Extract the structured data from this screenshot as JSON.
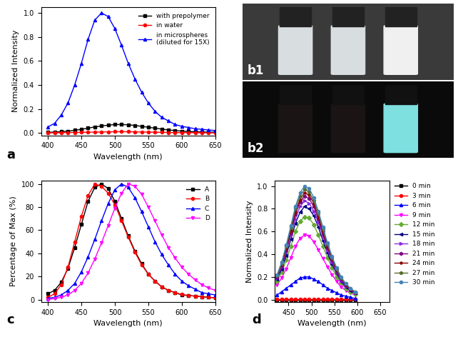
{
  "chart_data": [
    {
      "type": "line",
      "annotation": "a",
      "x_label": "Wavelength (nm)",
      "y_label": "Normalized Intensity",
      "x": [
        400,
        410,
        420,
        430,
        440,
        450,
        460,
        470,
        480,
        490,
        500,
        510,
        520,
        530,
        540,
        550,
        560,
        570,
        580,
        590,
        600,
        610,
        620,
        630,
        640,
        650
      ],
      "xlim": [
        390,
        650
      ],
      "xticks": [
        400,
        450,
        500,
        550,
        600,
        650
      ],
      "ylim": [
        -0.02,
        1.05
      ],
      "yticks": [
        {
          "value": 0.0,
          "label": "0.0"
        },
        {
          "value": 0.2,
          "label": "0.2"
        },
        {
          "value": 0.4,
          "label": "0.4"
        },
        {
          "value": 0.6,
          "label": "0.6"
        },
        {
          "value": 0.8,
          "label": "0.8"
        },
        {
          "value": 1.0,
          "label": "1.0"
        }
      ],
      "legend": "upper right",
      "series": [
        {
          "name": "with prepolymer",
          "color": "#000000",
          "marker": "square",
          "line_style": "solid",
          "values": [
            0.005,
            0.007,
            0.01,
            0.015,
            0.022,
            0.03,
            0.04,
            0.05,
            0.058,
            0.065,
            0.07,
            0.07,
            0.068,
            0.062,
            0.055,
            0.047,
            0.04,
            0.032,
            0.025,
            0.02,
            0.015,
            0.012,
            0.01,
            0.008,
            0.007,
            0.006
          ]
        },
        {
          "name": "in water",
          "color": "#ff0000",
          "marker": "circle",
          "line_style": "solid",
          "values": [
            0.001,
            0.001,
            0.002,
            0.003,
            0.004,
            0.005,
            0.006,
            0.007,
            0.008,
            0.009,
            0.01,
            0.01,
            0.01,
            0.009,
            0.008,
            0.007,
            0.006,
            0.005,
            0.004,
            0.003,
            0.003,
            0.002,
            0.002,
            0.002,
            0.001,
            0.001
          ]
        },
        {
          "name": "in microspheres\n(diluted for 15X)",
          "color": "#0000ff",
          "marker": "triangle",
          "line_style": "solid",
          "values": [
            0.05,
            0.08,
            0.15,
            0.25,
            0.4,
            0.58,
            0.78,
            0.94,
            1.0,
            0.97,
            0.87,
            0.73,
            0.58,
            0.45,
            0.34,
            0.25,
            0.18,
            0.13,
            0.1,
            0.07,
            0.055,
            0.045,
            0.035,
            0.03,
            0.025,
            0.02
          ]
        }
      ]
    },
    {
      "type": "line",
      "annotation": "c",
      "x_label": "Wavelength (nm)",
      "y_label": "Percentage of Max (%)",
      "x": [
        400,
        410,
        420,
        430,
        440,
        450,
        460,
        470,
        480,
        490,
        500,
        510,
        520,
        530,
        540,
        550,
        560,
        570,
        580,
        590,
        600,
        610,
        620,
        630,
        640,
        650
      ],
      "xlim": [
        390,
        650
      ],
      "xticks": [
        400,
        450,
        500,
        550,
        600,
        650
      ],
      "ylim": [
        -2,
        103
      ],
      "yticks": [
        0,
        20,
        40,
        60,
        80,
        100
      ],
      "legend": "upper right",
      "series": [
        {
          "name": "A",
          "color": "#000000",
          "marker": "square",
          "line_style": "solid",
          "values": [
            5,
            8,
            15,
            27,
            45,
            65,
            85,
            97,
            100,
            96,
            85,
            70,
            55,
            42,
            31,
            22,
            16,
            11,
            8,
            6,
            4,
            3.5,
            3,
            2.5,
            2,
            1.5
          ]
        },
        {
          "name": "B",
          "color": "#ff0000",
          "marker": "circle",
          "line_style": "solid",
          "values": [
            2,
            5,
            13,
            28,
            50,
            72,
            90,
            100,
            98,
            92,
            82,
            68,
            54,
            41,
            30,
            22,
            16,
            11,
            8,
            6,
            4.5,
            3.5,
            3,
            2.5,
            2,
            1.5
          ]
        },
        {
          "name": "C",
          "color": "#0000ff",
          "marker": "triangle",
          "line_style": "solid",
          "values": [
            1,
            2,
            4,
            8,
            14,
            24,
            37,
            52,
            68,
            83,
            95,
            100,
            97,
            88,
            76,
            63,
            50,
            39,
            30,
            22,
            16,
            12,
            9,
            6,
            5,
            4
          ]
        },
        {
          "name": "D",
          "color": "#ff00ff",
          "marker": "triangle_down",
          "line_style": "solid",
          "values": [
            0,
            1,
            2,
            4,
            8,
            14,
            23,
            35,
            49,
            64,
            79,
            92,
            100,
            98,
            91,
            80,
            68,
            56,
            45,
            36,
            28,
            22,
            17,
            13,
            10,
            8
          ]
        }
      ]
    },
    {
      "type": "line",
      "annotation": "d",
      "x_label": "Wavelength (nm)",
      "y_label": "Normalized Intensity",
      "x": [
        425,
        435,
        445,
        455,
        465,
        475,
        485,
        495,
        505,
        515,
        525,
        535,
        545,
        555,
        565,
        575,
        585,
        595
      ],
      "xlim": [
        420,
        670
      ],
      "xticks": [
        450,
        500,
        550,
        600,
        650
      ],
      "ylim": [
        -0.02,
        1.05
      ],
      "yticks": [
        {
          "value": 0.0,
          "label": "0.0"
        },
        {
          "value": 0.2,
          "label": "0.2"
        },
        {
          "value": 0.4,
          "label": "0.4"
        },
        {
          "value": 0.6,
          "label": "0.6"
        },
        {
          "value": 0.8,
          "label": "0.8"
        },
        {
          "value": 1.0,
          "label": "1.0"
        }
      ],
      "legend": "right",
      "series": [
        {
          "name": "0 min",
          "color": "#000000",
          "marker": "square",
          "line_style": "solid",
          "values": [
            0,
            0,
            0,
            0,
            0,
            0,
            0,
            0,
            0,
            0,
            0,
            0,
            0,
            0,
            0,
            0,
            0,
            0
          ]
        },
        {
          "name": "3 min",
          "color": "#ff0000",
          "marker": "circle",
          "line_style": "solid",
          "values": [
            0.005,
            0.005,
            0.005,
            0.005,
            0.005,
            0.005,
            0.005,
            0.005,
            0.005,
            0.005,
            0.005,
            0.005,
            0.005,
            0.005,
            0.005,
            0.005,
            0.005,
            0.005
          ]
        },
        {
          "name": "6 min",
          "color": "#0000ff",
          "marker": "triangle",
          "line_style": "solid",
          "values": [
            0.04,
            0.07,
            0.1,
            0.13,
            0.16,
            0.19,
            0.2,
            0.2,
            0.18,
            0.16,
            0.13,
            0.1,
            0.08,
            0.06,
            0.04,
            0.03,
            0.02,
            0.01
          ]
        },
        {
          "name": "9 min",
          "color": "#ff00ff",
          "marker": "triangle_down",
          "line_style": "solid",
          "values": [
            0.13,
            0.19,
            0.27,
            0.37,
            0.47,
            0.54,
            0.57,
            0.56,
            0.51,
            0.44,
            0.36,
            0.29,
            0.22,
            0.16,
            0.11,
            0.08,
            0.06,
            0.04
          ]
        },
        {
          "name": "12 min",
          "color": "#66aa33",
          "marker": "diamond",
          "line_style": "solid",
          "values": [
            0.16,
            0.24,
            0.35,
            0.47,
            0.6,
            0.69,
            0.73,
            0.72,
            0.66,
            0.57,
            0.47,
            0.37,
            0.28,
            0.2,
            0.15,
            0.1,
            0.07,
            0.05
          ]
        },
        {
          "name": "15 min",
          "color": "#000080",
          "marker": "triangle_left",
          "line_style": "solid",
          "values": [
            0.18,
            0.27,
            0.39,
            0.53,
            0.67,
            0.77,
            0.82,
            0.8,
            0.74,
            0.64,
            0.52,
            0.41,
            0.31,
            0.23,
            0.16,
            0.11,
            0.08,
            0.06
          ]
        },
        {
          "name": "18 min",
          "color": "#8a2be2",
          "marker": "triangle_right",
          "line_style": "solid",
          "values": [
            0.19,
            0.29,
            0.42,
            0.57,
            0.71,
            0.82,
            0.87,
            0.85,
            0.78,
            0.68,
            0.56,
            0.44,
            0.33,
            0.24,
            0.17,
            0.12,
            0.09,
            0.06
          ]
        },
        {
          "name": "21 min",
          "color": "#800080",
          "marker": "hexagon",
          "line_style": "solid",
          "values": [
            0.2,
            0.3,
            0.44,
            0.59,
            0.75,
            0.86,
            0.91,
            0.89,
            0.82,
            0.71,
            0.58,
            0.46,
            0.35,
            0.25,
            0.18,
            0.13,
            0.09,
            0.06
          ]
        },
        {
          "name": "24 min",
          "color": "#8b0000",
          "marker": "star",
          "line_style": "solid",
          "values": [
            0.21,
            0.31,
            0.45,
            0.61,
            0.77,
            0.88,
            0.94,
            0.92,
            0.85,
            0.73,
            0.6,
            0.47,
            0.36,
            0.26,
            0.19,
            0.13,
            0.09,
            0.07
          ]
        },
        {
          "name": "27 min",
          "color": "#556b2f",
          "marker": "pentagon",
          "line_style": "solid",
          "values": [
            0.21,
            0.32,
            0.47,
            0.63,
            0.8,
            0.91,
            0.97,
            0.95,
            0.87,
            0.76,
            0.62,
            0.49,
            0.37,
            0.27,
            0.19,
            0.14,
            0.1,
            0.07
          ]
        },
        {
          "name": "30 min",
          "color": "#4682b4",
          "marker": "circle",
          "line_style": "solid",
          "values": [
            0.22,
            0.33,
            0.48,
            0.65,
            0.82,
            0.94,
            1.0,
            0.98,
            0.9,
            0.78,
            0.64,
            0.5,
            0.38,
            0.28,
            0.2,
            0.14,
            0.1,
            0.07
          ]
        }
      ]
    }
  ],
  "photos": [
    {
      "label": "b1"
    },
    {
      "label": "b2"
    }
  ]
}
